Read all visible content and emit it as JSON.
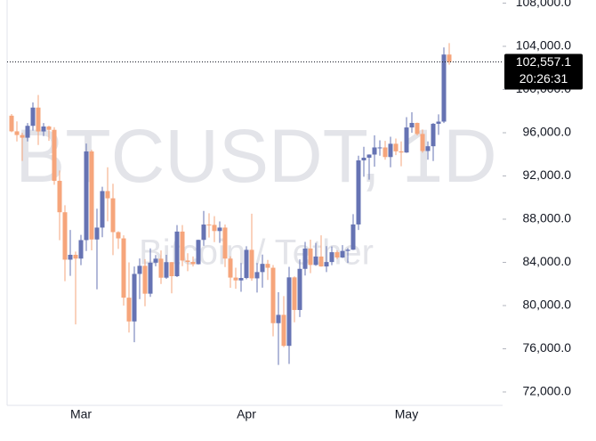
{
  "chart_data": {
    "type": "candlestick",
    "watermark_title": "BTCUSDT, 1D",
    "watermark_subtitle": "Bitcoin / Tether",
    "categories": [
      null,
      null,
      null,
      null,
      null,
      null,
      null,
      null,
      null,
      null,
      null,
      null,
      null,
      "Mar",
      null,
      null,
      null,
      null,
      null,
      null,
      null,
      null,
      null,
      null,
      null,
      null,
      null,
      null,
      null,
      null,
      null,
      null,
      null,
      null,
      null,
      null,
      null,
      null,
      null,
      null,
      null,
      null,
      null,
      null,
      "Apr",
      null,
      null,
      null,
      null,
      null,
      null,
      null,
      null,
      null,
      null,
      null,
      null,
      null,
      null,
      null,
      null,
      null,
      null,
      null,
      null,
      null,
      null,
      null,
      null,
      null,
      null,
      null,
      null,
      null,
      "May",
      null,
      null,
      null,
      null,
      null,
      null,
      null,
      null
    ],
    "open": [
      97580,
      96130,
      95790,
      95540,
      96640,
      98330,
      96120,
      96580,
      96270,
      91550,
      88640,
      84250,
      84700,
      84350,
      86060,
      94270,
      86120,
      87220,
      90600,
      89930,
      86800,
      86220,
      80730,
      78530,
      82930,
      83680,
      81100,
      83970,
      84340,
      82580,
      84020,
      82720,
      86850,
      84170,
      84040,
      83830,
      86080,
      87500,
      87470,
      86900,
      87220,
      84350,
      82590,
      82330,
      82550,
      85160,
      82520,
      83100,
      83860,
      83500,
      78370,
      79140,
      76270,
      82610,
      79590,
      83400,
      85280,
      83760,
      84540,
      83620,
      84030,
      84940,
      84450,
      85060,
      85170,
      87510,
      93440,
      93690,
      93980,
      94640,
      94640,
      93750,
      94980,
      94280,
      94170,
      96490,
      96910,
      95890,
      94310,
      94750,
      96830,
      97030,
      103240
    ],
    "high": [
      97730,
      97050,
      96000,
      96900,
      98800,
      99500,
      96900,
      96650,
      96520,
      92500,
      89290,
      87000,
      85000,
      86550,
      95000,
      94420,
      88970,
      91000,
      92800,
      91280,
      86880,
      86500,
      84000,
      83620,
      84360,
      84300,
      85300,
      84680,
      85100,
      84700,
      84030,
      87450,
      87450,
      84840,
      84540,
      86100,
      88760,
      88550,
      88280,
      87790,
      87500,
      84560,
      83500,
      83940,
      85490,
      88500,
      83940,
      84720,
      84230,
      83750,
      81240,
      80870,
      83590,
      82700,
      84280,
      85900,
      86100,
      85800,
      86500,
      85500,
      85470,
      85100,
      85600,
      85320,
      88460,
      93880,
      94700,
      94000,
      95760,
      95300,
      95250,
      95630,
      95460,
      95200,
      97440,
      97900,
      96940,
      96300,
      95200,
      96900,
      97700,
      103900,
      104300
    ],
    "low": [
      96050,
      95200,
      93390,
      95200,
      96200,
      94870,
      95690,
      95250,
      91180,
      86050,
      82260,
      82750,
      78260,
      83740,
      85050,
      85110,
      81500,
      86330,
      87800,
      84670,
      85250,
      80000,
      77500,
      76610,
      80600,
      79940,
      80800,
      83640,
      82000,
      82470,
      81130,
      82640,
      83650,
      83180,
      83620,
      83800,
      85540,
      86300,
      85870,
      85800,
      83570,
      81650,
      81550,
      81280,
      82430,
      82300,
      81200,
      81660,
      82370,
      77150,
      74500,
      76150,
      74600,
      78450,
      78940,
      82780,
      83000,
      83680,
      83600,
      83100,
      83740,
      84300,
      84400,
      83950,
      85140,
      87000,
      91930,
      91660,
      92860,
      93880,
      93500,
      92800,
      93930,
      92900,
      94130,
      96000,
      95750,
      94150,
      93500,
      93380,
      95800,
      96900,
      102300
    ],
    "close": [
      96130,
      95790,
      95540,
      96640,
      98330,
      96120,
      96580,
      96270,
      91550,
      88640,
      84250,
      84700,
      84350,
      86060,
      94270,
      86120,
      87220,
      90600,
      89930,
      86800,
      86220,
      80730,
      78530,
      82930,
      83680,
      81100,
      83970,
      84340,
      82580,
      84020,
      82720,
      86850,
      84170,
      84040,
      83830,
      86080,
      87500,
      87470,
      86900,
      87220,
      84350,
      82590,
      82330,
      82550,
      85160,
      82520,
      83100,
      83860,
      83500,
      78370,
      79140,
      76270,
      82610,
      79590,
      83400,
      85280,
      83760,
      84540,
      83620,
      84030,
      84940,
      84450,
      85060,
      85170,
      87510,
      93440,
      93690,
      93980,
      94640,
      94640,
      93750,
      94980,
      94280,
      94170,
      96490,
      96910,
      95890,
      94310,
      94750,
      96830,
      97030,
      103240,
      102557.1
    ],
    "up_color": "#6673b3",
    "down_color": "#f6a57b",
    "ylim": [
      70760,
      108290
    ],
    "yticks": [
      {
        "value": 72000,
        "label": "72,000.0"
      },
      {
        "value": 76000,
        "label": "76,000.0"
      },
      {
        "value": 80000,
        "label": "80,000.0"
      },
      {
        "value": 84000,
        "label": "84,000.0"
      },
      {
        "value": 88000,
        "label": "88,000.0"
      },
      {
        "value": 92000,
        "label": "92,000.0"
      },
      {
        "value": 96000,
        "label": "96,000.0"
      },
      {
        "value": 100000,
        "label": "100,000.0"
      },
      {
        "value": 104000,
        "label": "104,000.0"
      },
      {
        "value": 108000,
        "label": "108,000.0"
      }
    ],
    "last_price": {
      "value": 102557.1,
      "label": "102,557.1"
    },
    "countdown": "20:26:31"
  }
}
